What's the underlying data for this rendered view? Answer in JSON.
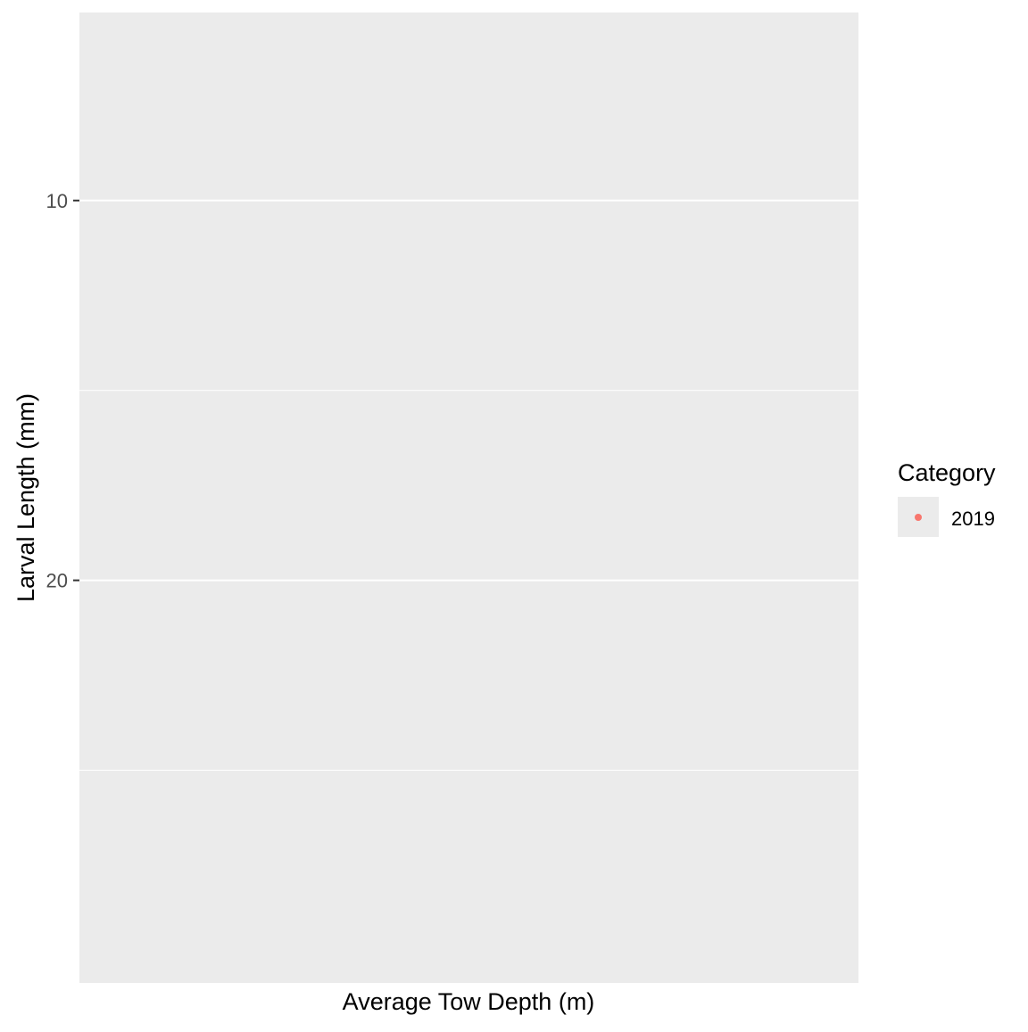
{
  "chart_data": {
    "type": "scatter",
    "title": "",
    "xlabel": "Average Tow Depth (m)",
    "ylabel": "Larval Length (mm)",
    "y_reversed": true,
    "ylim": [
      5.05,
      30.6
    ],
    "y_major_ticks": [
      10,
      20
    ],
    "y_minor_gridlines": [
      5,
      15,
      25
    ],
    "x_ticks": [],
    "grid": true,
    "panel_background": "#EBEBEB",
    "gridline_color": "#FFFFFF",
    "series": [
      {
        "name": "2019",
        "color": "#F8766D",
        "x": [],
        "y": []
      }
    ],
    "legend": {
      "title": "Category",
      "position": "right",
      "items": [
        {
          "label": "2019",
          "color": "#F8766D"
        }
      ]
    }
  }
}
